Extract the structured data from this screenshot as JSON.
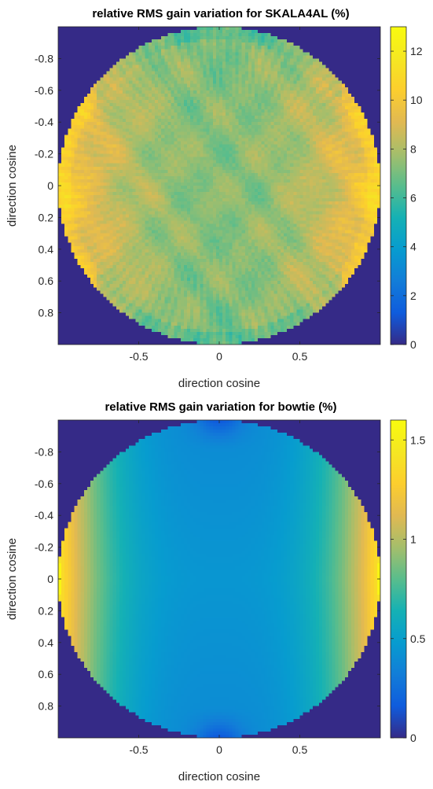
{
  "chart_data": [
    {
      "type": "heatmap",
      "title": "relative RMS gain variation for SKALA4AL (%)",
      "xlabel": "direction cosine",
      "ylabel": "direction cosine",
      "xlim": [
        -1,
        1
      ],
      "ylim": [
        -1,
        1
      ],
      "y_reversed": true,
      "x_ticks": [
        -0.5,
        0,
        0.5
      ],
      "x_tick_labels": [
        "-0.5",
        "0",
        "0.5"
      ],
      "y_ticks": [
        -0.8,
        -0.6,
        -0.4,
        -0.2,
        0,
        0.2,
        0.4,
        0.6,
        0.8
      ],
      "y_tick_labels": [
        "-0.8",
        "-0.6",
        "-0.4",
        "-0.2",
        "0",
        "0.2",
        "0.4",
        "0.6",
        "0.8"
      ],
      "colorbar": {
        "colormap": "parula",
        "clim": [
          0,
          13
        ],
        "ticks": [
          0,
          2,
          4,
          6,
          8,
          10,
          12
        ],
        "tick_labels": [
          "0",
          "2",
          "4",
          "6",
          "8",
          "10",
          "12"
        ]
      },
      "field": {
        "outside_unit_circle_value": 0,
        "center_value": 7.3,
        "rim_value_at_l_extremes": 10.5,
        "rim_value_at_m_extremes": 7.0,
        "edge_peak_value": 11.0,
        "pattern": "mottled/noisy, highest near left and right rim"
      },
      "grid": false
    },
    {
      "type": "heatmap",
      "title": "relative RMS gain variation for bowtie (%)",
      "xlabel": "direction cosine",
      "ylabel": "direction cosine",
      "xlim": [
        -1,
        1
      ],
      "ylim": [
        -1,
        1
      ],
      "y_reversed": true,
      "x_ticks": [
        -0.5,
        0,
        0.5
      ],
      "x_tick_labels": [
        "-0.5",
        "0",
        "0.5"
      ],
      "y_ticks": [
        -0.8,
        -0.6,
        -0.4,
        -0.2,
        0,
        0.2,
        0.4,
        0.6,
        0.8
      ],
      "y_tick_labels": [
        "-0.8",
        "-0.6",
        "-0.4",
        "-0.2",
        "0",
        "0.2",
        "0.4",
        "0.6",
        "0.8"
      ],
      "colorbar": {
        "colormap": "parula",
        "clim": [
          0,
          1.6
        ],
        "ticks": [
          0,
          0.5,
          1,
          1.5
        ],
        "tick_labels": [
          "0",
          "0.5",
          "1",
          "1.5"
        ]
      },
      "field": {
        "outside_unit_circle_value": 0,
        "center_value": 0.45,
        "rim_value_at_l_extremes": 1.45,
        "rim_value_at_m_extremes": 0.2,
        "edge_peak_value": 1.55,
        "pattern": "smooth, rising toward left and right rim"
      },
      "grid": false
    }
  ]
}
